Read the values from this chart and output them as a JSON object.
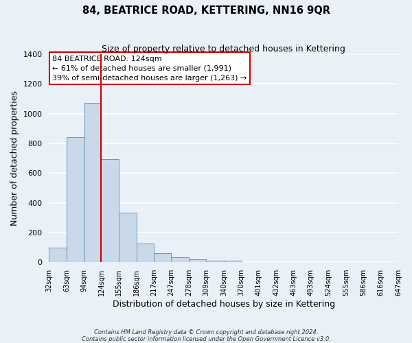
{
  "title": "84, BEATRICE ROAD, KETTERING, NN16 9QR",
  "subtitle": "Size of property relative to detached houses in Kettering",
  "xlabel": "Distribution of detached houses by size in Kettering",
  "ylabel": "Number of detached properties",
  "bar_color": "#c9d9ea",
  "bar_edge_color": "#6699bb",
  "background_color": "#eaf0f8",
  "grid_color": "#ffffff",
  "categories": [
    "32sqm",
    "63sqm",
    "94sqm",
    "124sqm",
    "155sqm",
    "186sqm",
    "217sqm",
    "247sqm",
    "278sqm",
    "309sqm",
    "340sqm",
    "370sqm",
    "401sqm",
    "432sqm",
    "463sqm",
    "493sqm",
    "524sqm",
    "555sqm",
    "586sqm",
    "616sqm",
    "647sqm"
  ],
  "values": [
    100,
    840,
    1075,
    695,
    335,
    125,
    63,
    32,
    20,
    12,
    10,
    0,
    0,
    0,
    0,
    0,
    0,
    0,
    0,
    0,
    0
  ],
  "bin_edges": [
    32,
    63,
    94,
    124,
    155,
    186,
    217,
    247,
    278,
    309,
    340,
    370,
    401,
    432,
    463,
    493,
    524,
    555,
    586,
    616,
    647
  ],
  "vline_x": 124,
  "vline_color": "#cc0000",
  "ylim": [
    0,
    1400
  ],
  "yticks": [
    0,
    200,
    400,
    600,
    800,
    1000,
    1200,
    1400
  ],
  "annotation_title": "84 BEATRICE ROAD: 124sqm",
  "annotation_line1": "← 61% of detached houses are smaller (1,991)",
  "annotation_line2": "39% of semi-detached houses are larger (1,263) →",
  "annotation_box_color": "#ffffff",
  "annotation_border_color": "#cc0000",
  "footer_line1": "Contains HM Land Registry data © Crown copyright and database right 2024.",
  "footer_line2": "Contains public sector information licensed under the Open Government Licence v3.0."
}
